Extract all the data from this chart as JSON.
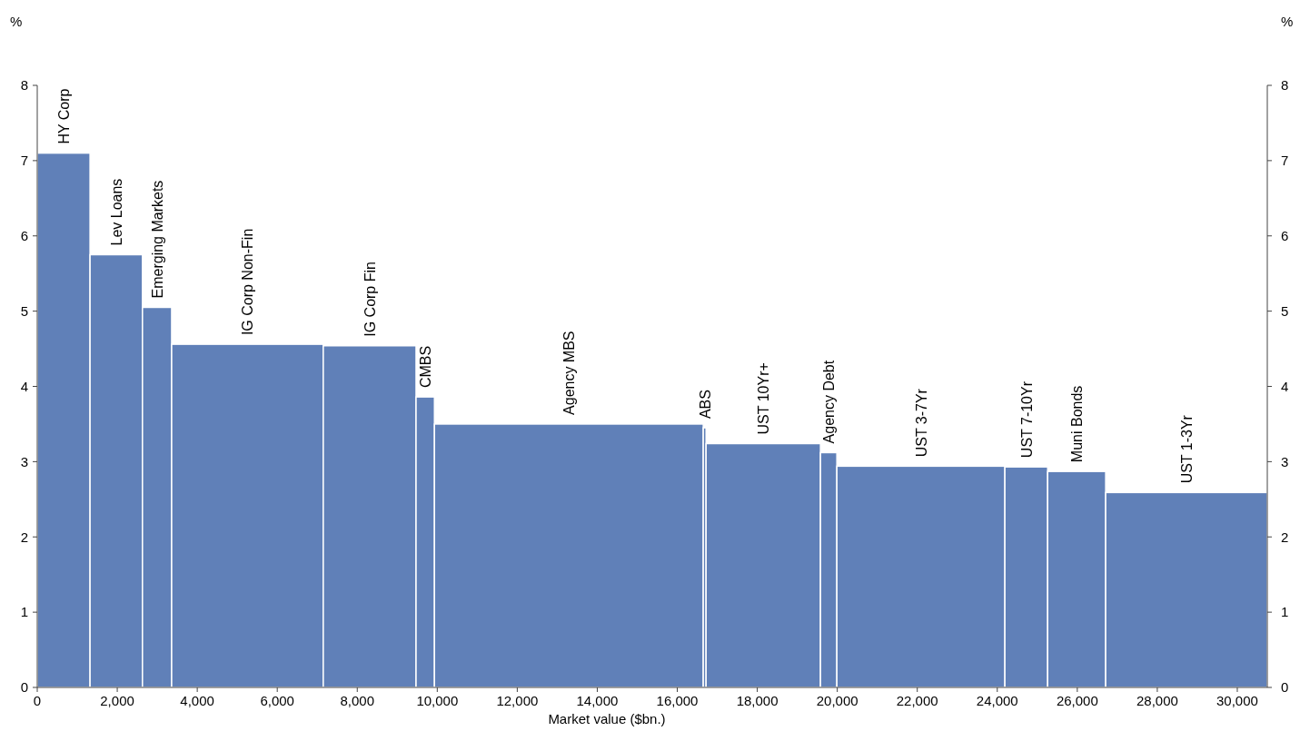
{
  "chart_data": {
    "type": "histogram",
    "xlabel": "Market value ($bn.)",
    "ylabel": "%",
    "y2label": "%",
    "bins": [
      0,
      1320,
      2630,
      3360,
      7150,
      9470,
      9930,
      16650,
      16720,
      19580,
      19990,
      24190,
      25260,
      26710,
      30750
    ],
    "values": [
      7.1,
      5.75,
      5.05,
      4.56,
      4.54,
      3.86,
      3.5,
      3.45,
      3.24,
      3.12,
      2.94,
      2.93,
      2.87,
      2.59
    ],
    "color": "#6080b8",
    "xlim": [
      0,
      30750
    ],
    "xticks": [
      {
        "value": 0,
        "label": "0"
      },
      {
        "value": 2000,
        "label": "2,000"
      },
      {
        "value": 4000,
        "label": "4,000"
      },
      {
        "value": 6000,
        "label": "6,000"
      },
      {
        "value": 8000,
        "label": "8,000"
      },
      {
        "value": 10000,
        "label": "10,000"
      },
      {
        "value": 12000,
        "label": "12,000"
      },
      {
        "value": 14000,
        "label": "14,000"
      },
      {
        "value": 16000,
        "label": "16,000"
      },
      {
        "value": 18000,
        "label": "18,000"
      },
      {
        "value": 20000,
        "label": "20,000"
      },
      {
        "value": 22000,
        "label": "22,000"
      },
      {
        "value": 24000,
        "label": "24,000"
      },
      {
        "value": 26000,
        "label": "26,000"
      },
      {
        "value": 28000,
        "label": "28,000"
      },
      {
        "value": 30000,
        "label": "30,000"
      }
    ],
    "ylim": [
      0,
      8
    ],
    "yticks": [
      0,
      1,
      2,
      3,
      4,
      5,
      6,
      7,
      8
    ],
    "y2lim": [
      0,
      8
    ],
    "y2ticks": [
      0,
      1,
      2,
      3,
      4,
      5,
      6,
      7,
      8
    ],
    "annotations": [
      {
        "text": "HY Corp",
        "x": 660,
        "y": 7.1
      },
      {
        "text": "Lev Loans",
        "x": 1975,
        "y": 5.75
      },
      {
        "text": "Emerging Markets",
        "x": 2995,
        "y": 5.05
      },
      {
        "text": "IG Corp Non-Fin",
        "x": 5255,
        "y": 4.56
      },
      {
        "text": "IG Corp Fin",
        "x": 8310,
        "y": 4.54
      },
      {
        "text": "CMBS",
        "x": 9700,
        "y": 3.86
      },
      {
        "text": "Agency MBS",
        "x": 13290,
        "y": 3.5
      },
      {
        "text": "ABS",
        "x": 16685,
        "y": 3.45
      },
      {
        "text": "UST 10Yr+",
        "x": 18150,
        "y": 3.24
      },
      {
        "text": "Agency Debt",
        "x": 19785,
        "y": 3.12
      },
      {
        "text": "UST 3-7Yr",
        "x": 22090,
        "y": 2.94
      },
      {
        "text": "UST 7-10Yr",
        "x": 24725,
        "y": 2.93
      },
      {
        "text": "Muni Bonds",
        "x": 25985,
        "y": 2.87
      },
      {
        "text": "UST 1-3Yr",
        "x": 28730,
        "y": 2.59
      }
    ]
  }
}
